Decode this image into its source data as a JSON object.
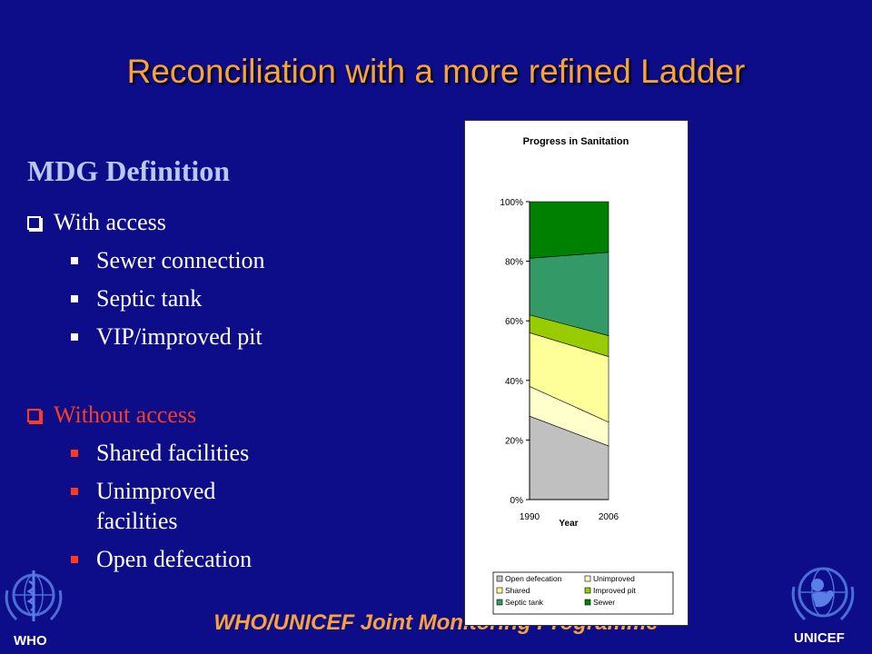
{
  "slide": {
    "title": "Reconciliation with a more refined Ladder",
    "section_heading": "MDG Definition",
    "groups": [
      {
        "label": "With access",
        "items": [
          "Sewer connection",
          "Septic tank",
          "VIP/improved pit"
        ]
      },
      {
        "label": "Without access",
        "items": [
          "Shared facilities",
          "Unimproved facilities",
          "Open defecation"
        ]
      }
    ],
    "footer": "WHO/UNICEF Joint Monitoring Programme",
    "logos": {
      "left": "WHO",
      "right": "UNICEF",
      "left_icon": "who-emblem-icon",
      "right_icon": "unicef-emblem-icon"
    },
    "colors": {
      "background": "#0d0d8a",
      "title": "#f7a23b",
      "heading": "#bcc6f2",
      "alert": "#ff3b1f"
    }
  },
  "chart_data": {
    "type": "area",
    "title": "Progress in Sanitation",
    "xlabel": "Year",
    "ylabel": "",
    "categories": [
      "1990",
      "2006"
    ],
    "ylim": [
      0,
      100
    ],
    "yticks": [
      "0%",
      "20%",
      "40%",
      "60%",
      "80%",
      "100%"
    ],
    "stacked": true,
    "series": [
      {
        "name": "Open defecation",
        "values": [
          28,
          18
        ],
        "color": "#c0c0c0"
      },
      {
        "name": "Unimproved",
        "values": [
          10,
          8
        ],
        "color": "#ffffcc"
      },
      {
        "name": "Shared",
        "values": [
          18,
          22
        ],
        "color": "#ffff99"
      },
      {
        "name": "Improved pit",
        "values": [
          6,
          7
        ],
        "color": "#99cc00"
      },
      {
        "name": "Septic tank",
        "values": [
          19,
          28
        ],
        "color": "#339966"
      },
      {
        "name": "Sewer",
        "values": [
          19,
          17
        ],
        "color": "#008000"
      }
    ],
    "legend_position": "bottom"
  }
}
